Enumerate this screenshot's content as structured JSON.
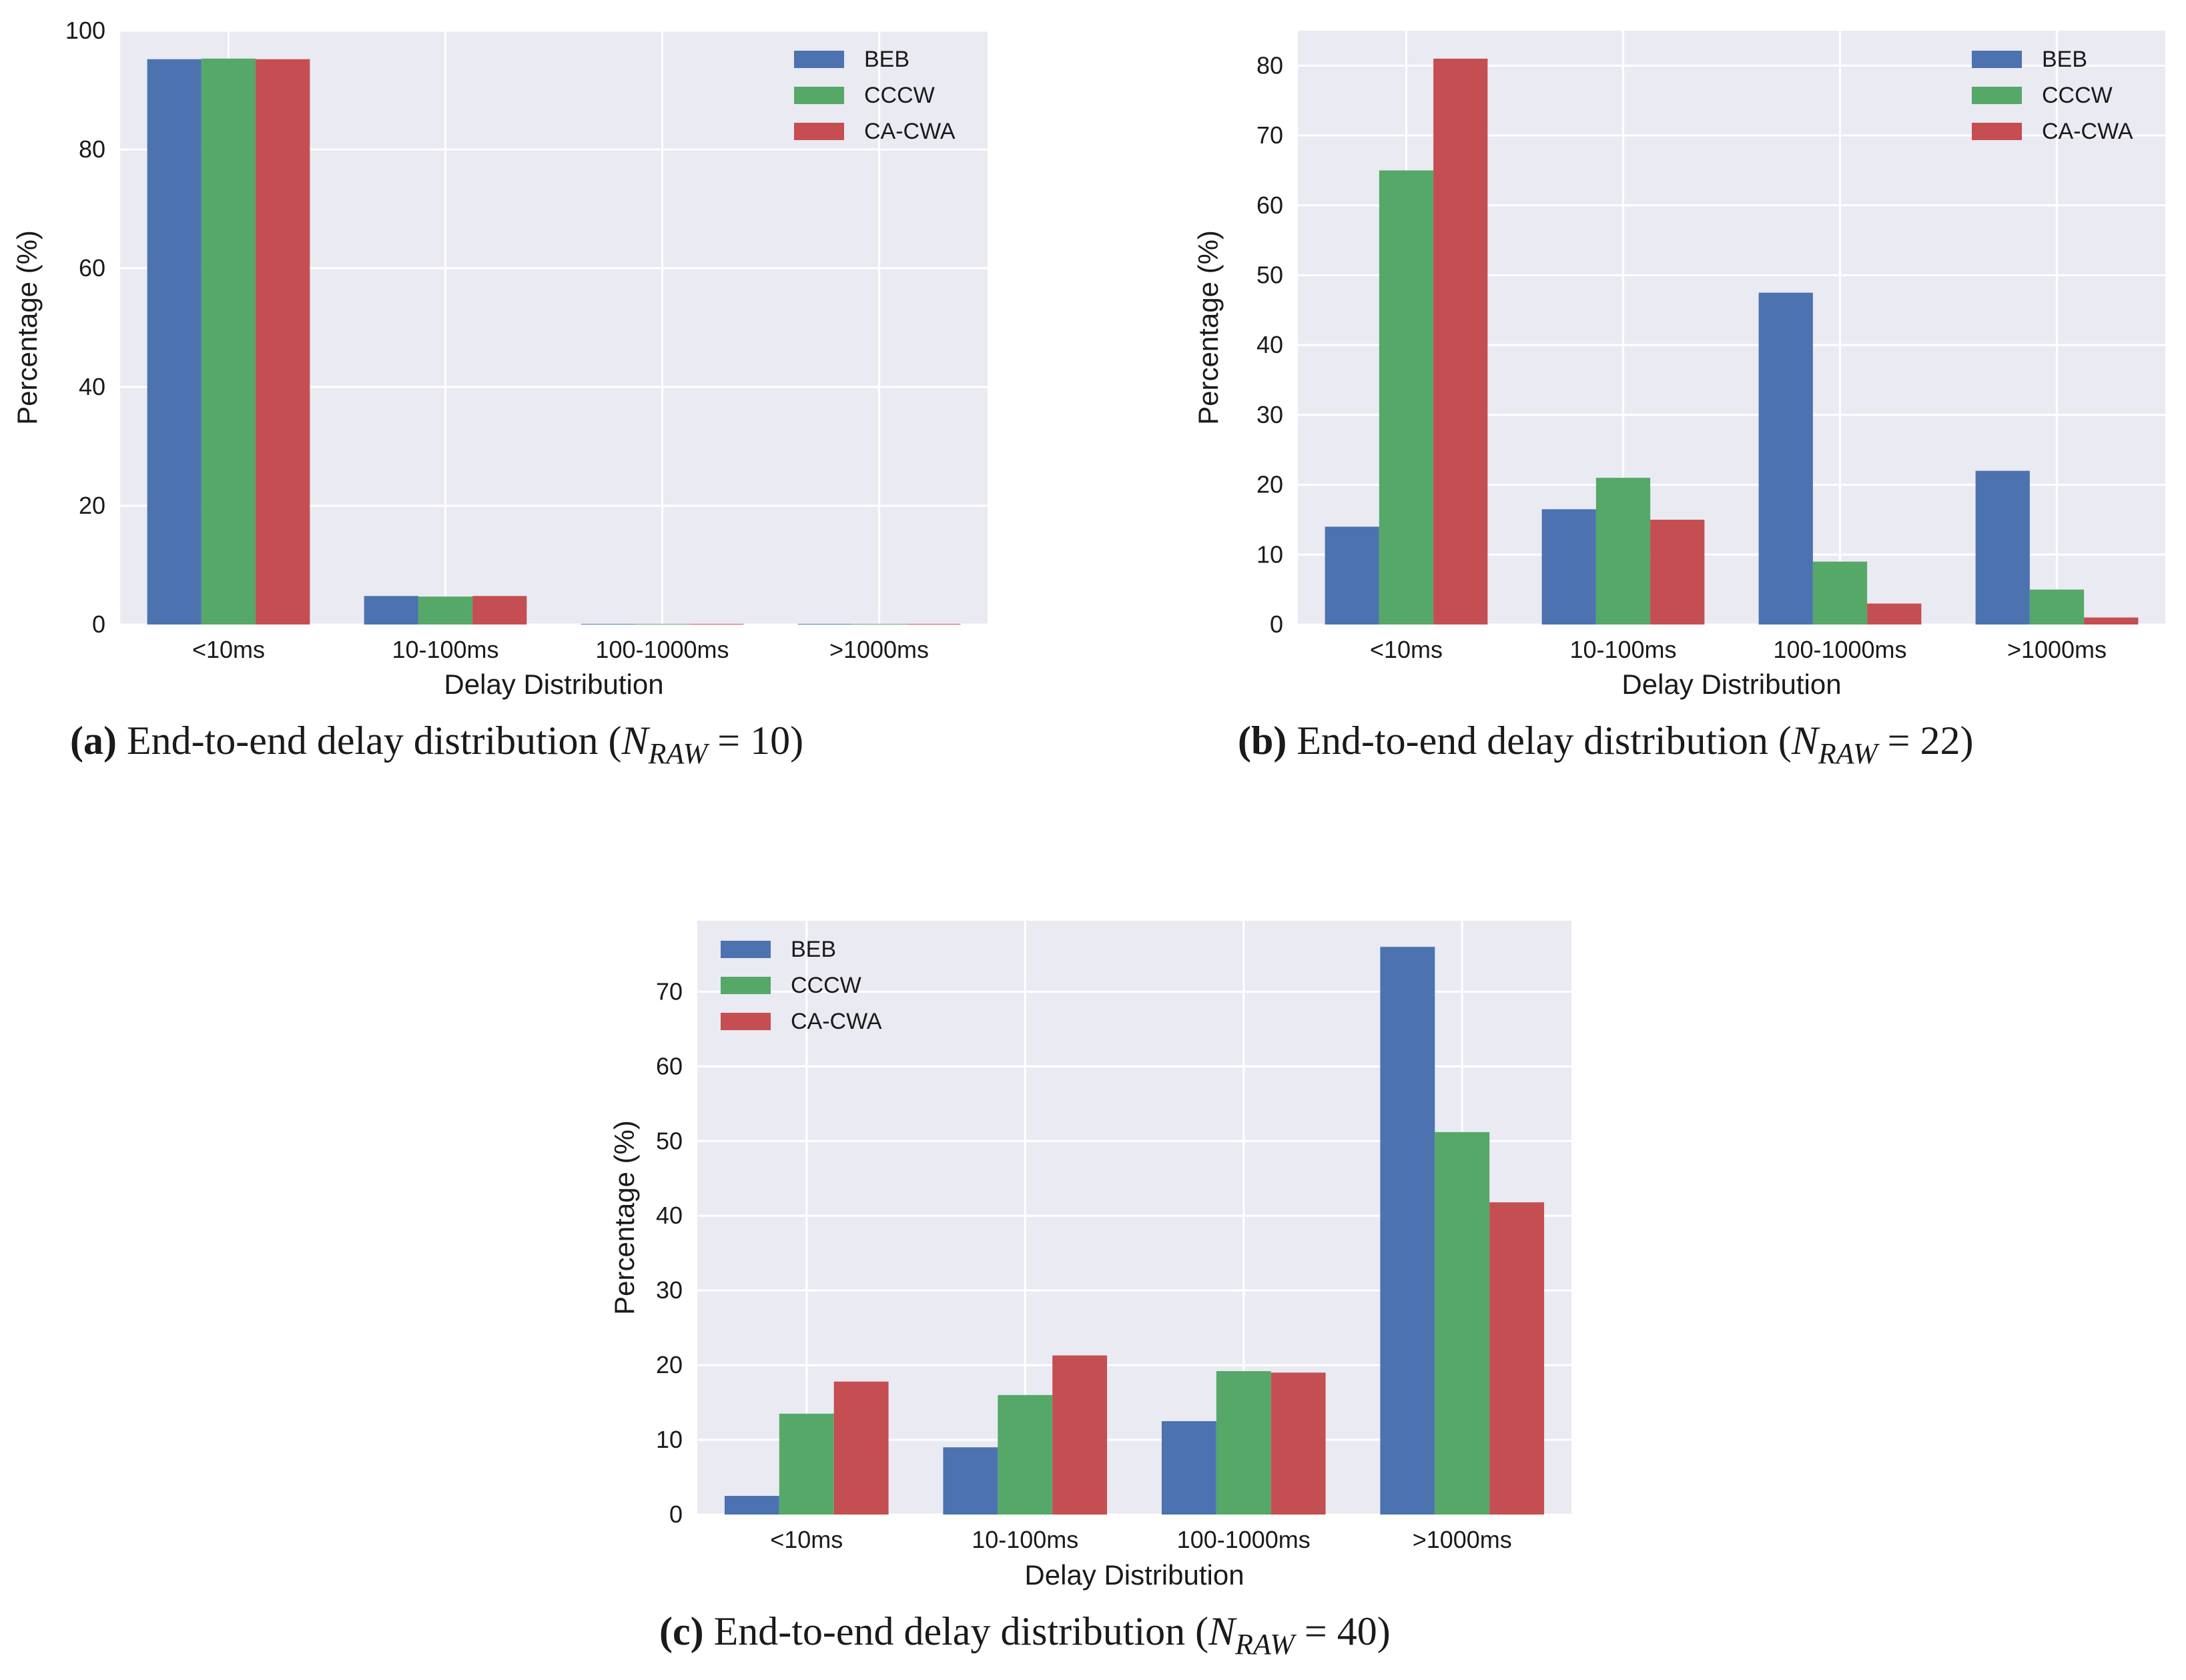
{
  "colors": {
    "BEB": "#4c72b0",
    "CCCW": "#55a868",
    "CA-CWA": "#c44e52",
    "plot_bg": "#eaeaf2",
    "grid": "#ffffff"
  },
  "chart_data": [
    {
      "type": "bar",
      "tag": "(a)",
      "caption_text": "End-to-end delay distribution",
      "caption_var": "N",
      "caption_sub": "RAW",
      "caption_value": "10",
      "xlabel": "Delay Distribution",
      "ylabel": "Percentage (%)",
      "categories": [
        "<10ms",
        "10-100ms",
        "100-1000ms",
        ">1000ms"
      ],
      "ylim": [
        0,
        100
      ],
      "yticks": [
        "0",
        "20",
        "40",
        "60",
        "80",
        "100"
      ],
      "grid": true,
      "legend_position": "top-right",
      "series": [
        {
          "name": "BEB",
          "values": [
            95.2,
            4.8,
            0.1,
            0.1
          ]
        },
        {
          "name": "CCCW",
          "values": [
            95.3,
            4.7,
            0.1,
            0.1
          ]
        },
        {
          "name": "CA-CWA",
          "values": [
            95.2,
            4.8,
            0.1,
            0.1
          ]
        }
      ]
    },
    {
      "type": "bar",
      "tag": "(b)",
      "caption_text": "End-to-end delay distribution",
      "caption_var": "N",
      "caption_sub": "RAW",
      "caption_value": "22",
      "xlabel": "Delay Distribution",
      "ylabel": "Percentage (%)",
      "categories": [
        "<10ms",
        "10-100ms",
        "100-1000ms",
        ">1000ms"
      ],
      "ylim": [
        0,
        85
      ],
      "yticks": [
        "0",
        "10",
        "20",
        "30",
        "40",
        "50",
        "60",
        "70",
        "80"
      ],
      "grid": true,
      "legend_position": "top-right",
      "series": [
        {
          "name": "BEB",
          "values": [
            14.0,
            16.5,
            47.5,
            22.0
          ]
        },
        {
          "name": "CCCW",
          "values": [
            65.0,
            21.0,
            9.0,
            5.0
          ]
        },
        {
          "name": "CA-CWA",
          "values": [
            81.0,
            15.0,
            3.0,
            1.0
          ]
        }
      ]
    },
    {
      "type": "bar",
      "tag": "(c)",
      "caption_text": "End-to-end delay distribution",
      "caption_var": "N",
      "caption_sub": "RAW",
      "caption_value": "40",
      "xlabel": "Delay Distribution",
      "ylabel": "Percentage (%)",
      "categories": [
        "<10ms",
        "10-100ms",
        "100-1000ms",
        ">1000ms"
      ],
      "ylim": [
        0,
        79.5
      ],
      "yticks": [
        "0",
        "10",
        "20",
        "30",
        "40",
        "50",
        "60",
        "70"
      ],
      "grid": true,
      "legend_position": "top-left",
      "series": [
        {
          "name": "BEB",
          "values": [
            2.5,
            9.0,
            12.5,
            76.0
          ]
        },
        {
          "name": "CCCW",
          "values": [
            13.5,
            16.0,
            19.2,
            51.2
          ]
        },
        {
          "name": "CA-CWA",
          "values": [
            17.8,
            21.3,
            19.0,
            41.8
          ]
        }
      ]
    }
  ]
}
